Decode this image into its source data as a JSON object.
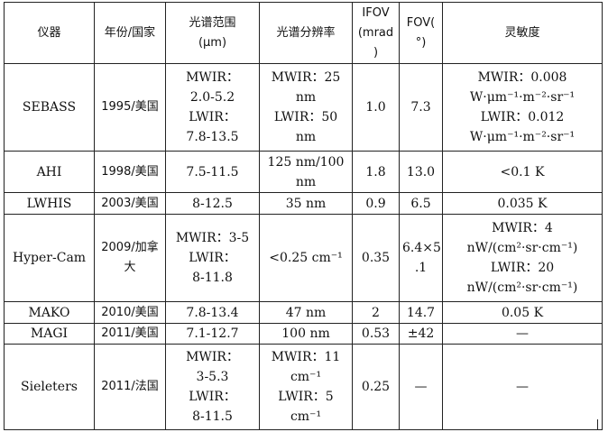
{
  "table": {
    "headers": [
      "仪器",
      "年份/国家",
      "光谱范围\n(μm)",
      "光谱分辨率",
      "IFOV\n(mrad\n)",
      "FOV(\n°)",
      "灵敏度"
    ],
    "rows": [
      [
        "SEBASS",
        "1995/美国",
        "MWIR：\n2.0-5.2\nLWIR：\n7.8-13.5",
        "MWIR：25\nnm\nLWIR：50\nnm",
        "1.0",
        "7.3",
        "MWIR：0.008\nW·μm⁻¹·m⁻²·sr⁻¹\nLWIR：0.012\nW·μm⁻¹·m⁻²·sr⁻¹"
      ],
      [
        "AHI",
        "1998/美国",
        "7.5-11.5",
        "125 nm/100\nnm",
        "1.8",
        "13.0",
        "<0.1 K"
      ],
      [
        "LWHIS",
        "2003/美国",
        "8-12.5",
        "35 nm",
        "0.9",
        "6.5",
        "0.035 K"
      ],
      [
        "Hyper-Cam",
        "2009/加拿\n大",
        "MWIR：3-5\nLWIR：\n8-11.8",
        "<0.25 cm⁻¹",
        "0.35",
        "6.4×5\n.1",
        "MWIR：4\nnW/(cm²·sr·cm⁻¹)\nLWIR：20\nnW/(cm²·sr·cm⁻¹)"
      ],
      [
        "MAKO",
        "2010/美国",
        "7.8-13.4",
        "47 nm",
        "2",
        "14.7",
        "0.05 K"
      ],
      [
        "MAGI",
        "2011/美国",
        "7.1-12.7",
        "100 nm",
        "0.53",
        "±42",
        "—"
      ],
      [
        "Sieleters",
        "2011/法国",
        "MWIR：\n3-5.3\nLWIR：\n8-11.5",
        "MWIR：11\ncm⁻¹\nLWIR：5\ncm⁻¹",
        "0.25",
        "—",
        "—"
      ]
    ]
  }
}
